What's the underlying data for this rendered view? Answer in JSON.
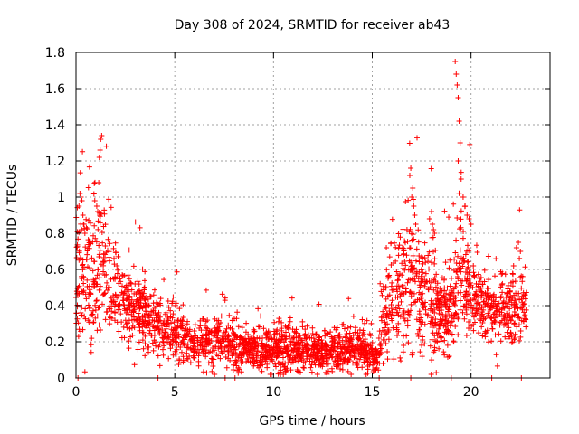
{
  "chart_data": {
    "type": "scatter",
    "title": "Day 308 of 2024, SRMTID for receiver ab43",
    "xlabel": "GPS time / hours",
    "ylabel": "SRMTID / TECUs",
    "xlim": [
      0,
      24
    ],
    "ylim": [
      0,
      1.8
    ],
    "x_ticks": [
      0,
      5,
      10,
      15,
      20
    ],
    "y_ticks": [
      0,
      0.2,
      0.4,
      0.6,
      0.8,
      1,
      1.2,
      1.4,
      1.6,
      1.8
    ],
    "x_tick_labels": [
      "0",
      "5",
      "10",
      "15",
      "20"
    ],
    "y_tick_labels": [
      "0",
      "0.2",
      "0.4",
      "0.6",
      "0.8",
      "1",
      "1.2",
      "1.4",
      "1.6",
      "1.8"
    ],
    "grid": true,
    "marker": "plus",
    "color": "#ff0000",
    "envelope": {
      "x": [
        0,
        0.5,
        1,
        1.5,
        2,
        2.5,
        3,
        3.5,
        4,
        4.5,
        5,
        5.5,
        6,
        6.5,
        7,
        7.5,
        8,
        8.5,
        9,
        9.5,
        10,
        10.5,
        11,
        11.5,
        12,
        12.5,
        13,
        13.5,
        14,
        14.5,
        15,
        15.3,
        15.5,
        16,
        16.5,
        17,
        17.5,
        18,
        18.5,
        19,
        19.3,
        19.6,
        20,
        20.5,
        21,
        21.5,
        22,
        22.5,
        22.8
      ],
      "center": [
        0.52,
        0.55,
        0.6,
        0.62,
        0.5,
        0.42,
        0.38,
        0.33,
        0.3,
        0.28,
        0.25,
        0.22,
        0.2,
        0.2,
        0.2,
        0.19,
        0.18,
        0.17,
        0.16,
        0.16,
        0.16,
        0.17,
        0.17,
        0.16,
        0.15,
        0.14,
        0.15,
        0.17,
        0.18,
        0.16,
        0.13,
        0.1,
        0.3,
        0.4,
        0.5,
        0.55,
        0.45,
        0.42,
        0.35,
        0.35,
        0.55,
        0.6,
        0.45,
        0.4,
        0.38,
        0.35,
        0.38,
        0.4,
        0.38
      ],
      "spread": [
        0.28,
        0.35,
        0.38,
        0.3,
        0.22,
        0.18,
        0.2,
        0.17,
        0.15,
        0.15,
        0.13,
        0.12,
        0.12,
        0.13,
        0.14,
        0.14,
        0.12,
        0.1,
        0.1,
        0.1,
        0.11,
        0.12,
        0.11,
        0.1,
        0.1,
        0.1,
        0.1,
        0.12,
        0.12,
        0.1,
        0.09,
        0.08,
        0.2,
        0.28,
        0.32,
        0.35,
        0.3,
        0.3,
        0.2,
        0.22,
        0.35,
        0.3,
        0.18,
        0.16,
        0.17,
        0.18,
        0.18,
        0.18,
        0.12
      ]
    },
    "point_count": 2600,
    "spikes": [
      {
        "x": [
          0.15,
          0.2,
          0.25,
          0.3,
          0.35,
          0.4,
          0.45
        ],
        "y": [
          0.95,
          1.02,
          1.0,
          0.98,
          0.9,
          0.85,
          0.8
        ]
      },
      {
        "x": [
          1.15,
          1.18,
          1.22,
          1.25,
          1.3
        ],
        "y": [
          1.08,
          1.22,
          1.26,
          1.32,
          1.34
        ]
      },
      {
        "x": [
          0.95,
          1.05,
          1.1,
          1.2
        ],
        "y": [
          0.98,
          0.95,
          0.92,
          0.9
        ]
      },
      {
        "x": [
          16.9,
          16.95,
          17.0,
          17.05,
          17.1,
          17.15,
          17.2
        ],
        "y": [
          1.12,
          1.16,
          1.0,
          1.05,
          0.95,
          0.9,
          0.85
        ]
      },
      {
        "x": [
          17.9,
          18.0,
          18.05,
          18.1,
          18.15
        ],
        "y": [
          0.88,
          0.92,
          0.85,
          0.82,
          0.8
        ]
      },
      {
        "x": [
          19.2,
          19.25,
          19.3,
          19.35,
          19.4,
          19.45
        ],
        "y": [
          1.75,
          1.68,
          1.62,
          1.55,
          1.42,
          1.3
        ]
      },
      {
        "x": [
          19.35,
          19.5,
          19.6,
          19.7,
          19.8,
          19.9,
          20.0
        ],
        "y": [
          1.2,
          1.1,
          1.0,
          0.95,
          0.9,
          0.88,
          0.85
        ]
      },
      {
        "x": [
          22.3,
          22.4,
          22.5
        ],
        "y": [
          0.72,
          0.75,
          0.7
        ]
      }
    ],
    "zero_points_x": [
      0.1,
      4.15,
      7.55,
      8.05,
      15.35,
      16.95,
      19.0,
      21.05,
      22.55
    ]
  }
}
